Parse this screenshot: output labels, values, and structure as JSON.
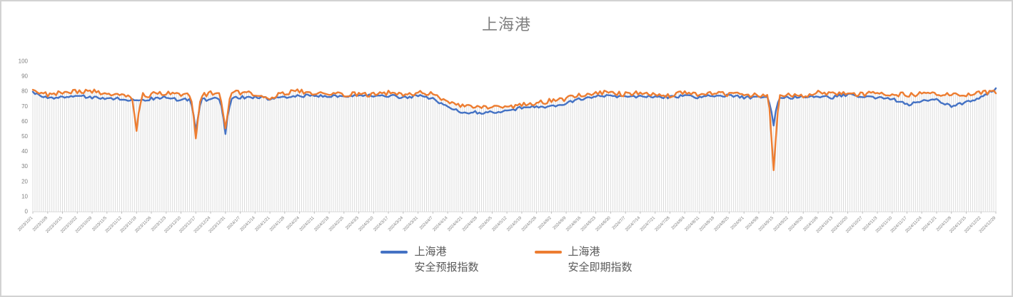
{
  "window": {
    "border_color": "#d2d2d2",
    "background": "#ffffff"
  },
  "chart_data": {
    "type": "line",
    "title": "上海港",
    "title_color": "#7f7f7f",
    "axis_label_color": "#7f7f7f",
    "dropline_color": "#dcdcdc",
    "tick_color": "#c0c0c0",
    "legend_position": "bottom",
    "grid": "vertical daily drop lines, no horizontal gridlines",
    "ylim": [
      0,
      100
    ],
    "y_ticks": [
      100,
      90,
      80,
      70,
      60,
      50,
      40,
      30,
      20,
      10,
      0
    ],
    "x_tick_interval_days": 7,
    "x_tick_labels": [
      "2023/10/1",
      "2023/10/8",
      "2023/10/15",
      "2023/10/22",
      "2023/10/29",
      "2023/11/5",
      "2023/11/12",
      "2023/11/19",
      "2023/11/26",
      "2023/12/3",
      "2023/12/10",
      "2023/12/17",
      "2023/12/24",
      "2023/12/31",
      "2024/1/7",
      "2024/1/14",
      "2024/1/21",
      "2024/1/28",
      "2024/2/4",
      "2024/2/11",
      "2024/2/18",
      "2024/2/25",
      "2024/3/3",
      "2024/3/10",
      "2024/3/17",
      "2024/3/24",
      "2024/3/31",
      "2024/4/7",
      "2024/4/14",
      "2024/4/21",
      "2024/4/28",
      "2024/5/5",
      "2024/5/12",
      "2024/5/19",
      "2024/5/26",
      "2024/6/2",
      "2024/6/9",
      "2024/6/16",
      "2024/6/23",
      "2024/6/30",
      "2024/7/7",
      "2024/7/14",
      "2024/7/21",
      "2024/7/28",
      "2024/8/4",
      "2024/8/11",
      "2024/8/18",
      "2024/8/25",
      "2024/9/1",
      "2024/9/8",
      "2024/9/15",
      "2024/9/22",
      "2024/9/29",
      "2024/10/6",
      "2024/10/13",
      "2024/10/20",
      "2024/10/27",
      "2024/11/3",
      "2024/11/10",
      "2024/11/17",
      "2024/11/24",
      "2024/12/1",
      "2024/12/8",
      "2024/12/15",
      "2024/12/22",
      "2024/12/29"
    ],
    "series": [
      {
        "name_line1": "上海港",
        "name_line2": "安全预报指数",
        "color": "#4472C4",
        "weekly_values": [
          79,
          76,
          76,
          77,
          76,
          75,
          75,
          74,
          75,
          76,
          74,
          54,
          75,
          52,
          76,
          76,
          75,
          76,
          77,
          77,
          77,
          77,
          77,
          77,
          77,
          76,
          77,
          75,
          70,
          66,
          66,
          66,
          67,
          69,
          70,
          70,
          72,
          75,
          77,
          77,
          76,
          77,
          76,
          76,
          77,
          76,
          77,
          77,
          76,
          76,
          58,
          76,
          76,
          77,
          76,
          78,
          76,
          76,
          75,
          71,
          74,
          74,
          70,
          73,
          76,
          82
        ]
      },
      {
        "name_line1": "上海港",
        "name_line2": "安全即期指数",
        "color": "#ED7D31",
        "weekly_values": [
          80,
          78,
          79,
          80,
          80,
          78,
          77,
          55,
          78,
          79,
          77,
          49,
          79,
          54,
          79,
          78,
          76,
          79,
          80,
          78,
          79,
          78,
          78,
          78,
          79,
          78,
          79,
          78,
          74,
          70,
          69,
          70,
          70,
          71,
          72,
          74,
          75,
          78,
          79,
          79,
          78,
          79,
          78,
          77,
          79,
          78,
          79,
          78,
          78,
          77,
          27,
          78,
          77,
          79,
          79,
          79,
          78,
          79,
          78,
          78,
          78,
          79,
          77,
          78,
          79,
          80
        ]
      }
    ]
  }
}
